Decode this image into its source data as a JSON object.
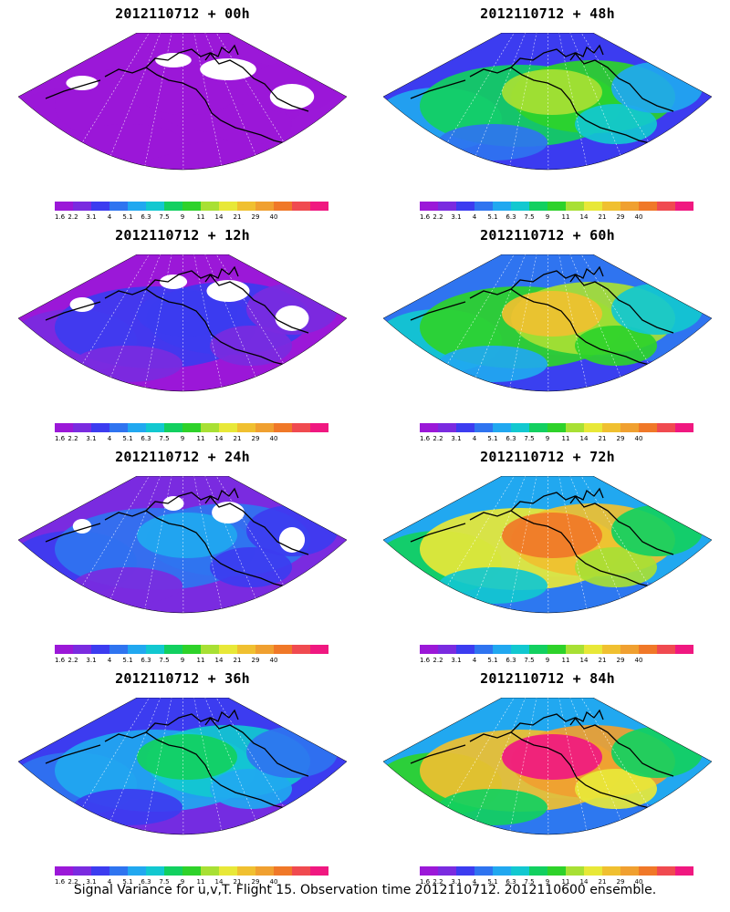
{
  "panels": [
    {
      "title": "2012110712 + 00h",
      "intensity": 0.05
    },
    {
      "title": "2012110712 + 48h",
      "intensity": 0.55
    },
    {
      "title": "2012110712 + 12h",
      "intensity": 0.18
    },
    {
      "title": "2012110712 + 60h",
      "intensity": 0.68
    },
    {
      "title": "2012110712 + 24h",
      "intensity": 0.28
    },
    {
      "title": "2012110712 + 72h",
      "intensity": 0.8
    },
    {
      "title": "2012110712 + 36h",
      "intensity": 0.4
    },
    {
      "title": "2012110712 + 84h",
      "intensity": 0.9
    }
  ],
  "colorbar": {
    "labels": [
      "1.6",
      "2.2",
      "3.1",
      "4",
      "5.1",
      "6.3",
      "7.5",
      "9",
      "11",
      "14",
      "21",
      "29",
      "40"
    ],
    "colors": [
      "#9b18d8",
      "#7a2be0",
      "#3c3cf0",
      "#2f74f0",
      "#21a8f0",
      "#12c8d0",
      "#12d060",
      "#2ed22a",
      "#a8e034",
      "#e8e838",
      "#f0c030",
      "#f0a030",
      "#f07828",
      "#f04a50",
      "#f01880"
    ]
  },
  "caption": "Signal Variance for u,v,T. Flight 15. Observation time 2012110712. 2012110600 ensemble."
}
